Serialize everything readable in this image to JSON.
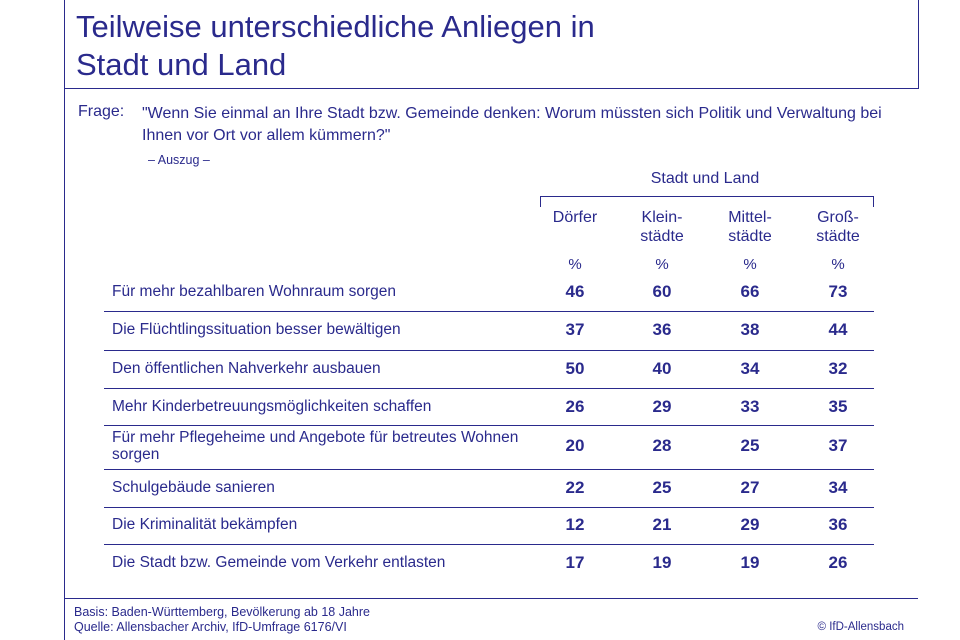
{
  "title_line1": "Teilweise unterschiedliche Anliegen in",
  "title_line2": "Stadt und Land",
  "question_label": "Frage:",
  "question_text": "\"Wenn Sie einmal an Ihre Stadt bzw. Gemeinde denken: Worum müssten sich Politik und Verwaltung bei Ihnen vor Ort vor allem kümmern?\"",
  "question_note": "– Auszug –",
  "column_group": "Stadt und Land",
  "colors": {
    "ink": "#2a2a8c",
    "background": "#ffffff"
  },
  "chart_data": {
    "type": "table",
    "columns": [
      {
        "line1": "Dörfer",
        "line2": "",
        "unit": "%"
      },
      {
        "line1": "Klein-",
        "line2": "städte",
        "unit": "%"
      },
      {
        "line1": "Mittel-",
        "line2": "städte",
        "unit": "%"
      },
      {
        "line1": "Groß-",
        "line2": "städte",
        "unit": "%"
      }
    ],
    "rows": [
      {
        "label": "Für mehr bezahlbaren Wohnraum sorgen",
        "values": [
          46,
          60,
          66,
          73
        ]
      },
      {
        "label": "Die Flüchtlingssituation besser bewältigen",
        "values": [
          37,
          36,
          38,
          44
        ]
      },
      {
        "label": "Den öffentlichen Nahverkehr ausbauen",
        "values": [
          50,
          40,
          34,
          32
        ]
      },
      {
        "label": "Mehr Kinderbetreuungsmöglichkeiten schaffen",
        "values": [
          26,
          29,
          33,
          35
        ]
      },
      {
        "label": "Für mehr Pflegeheime und Angebote für betreutes Wohnen sorgen",
        "values": [
          20,
          28,
          25,
          37
        ]
      },
      {
        "label": "Schulgebäude sanieren",
        "values": [
          22,
          25,
          27,
          34
        ]
      },
      {
        "label": "Die Kriminalität bekämpfen",
        "values": [
          12,
          21,
          29,
          36
        ]
      },
      {
        "label": "Die Stadt bzw. Gemeinde vom Verkehr entlasten",
        "values": [
          17,
          19,
          19,
          26
        ]
      }
    ]
  },
  "footer": {
    "basis": "Basis: Baden-Württemberg, Bevölkerung ab 18 Jahre",
    "source": "Quelle: Allensbacher Archiv, IfD-Umfrage 6176/VI",
    "copyright": "© IfD-Allensbach"
  }
}
